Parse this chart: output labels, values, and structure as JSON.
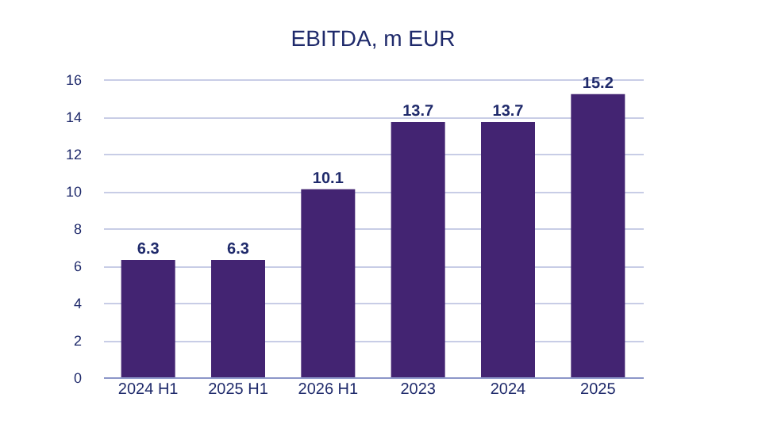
{
  "chart_data": {
    "type": "bar",
    "title": "EBITDA, m EUR",
    "categories": [
      "2024 H1",
      "2025 H1",
      "2026 H1",
      "2023",
      "2024",
      "2025"
    ],
    "values": [
      6.3,
      6.3,
      10.1,
      13.7,
      13.7,
      15.2
    ],
    "color": "#432472",
    "ylim": [
      0,
      16
    ],
    "yticks": [
      0,
      2,
      4,
      6,
      8,
      10,
      12,
      14,
      16
    ],
    "grid": "y",
    "data_labels": true
  }
}
